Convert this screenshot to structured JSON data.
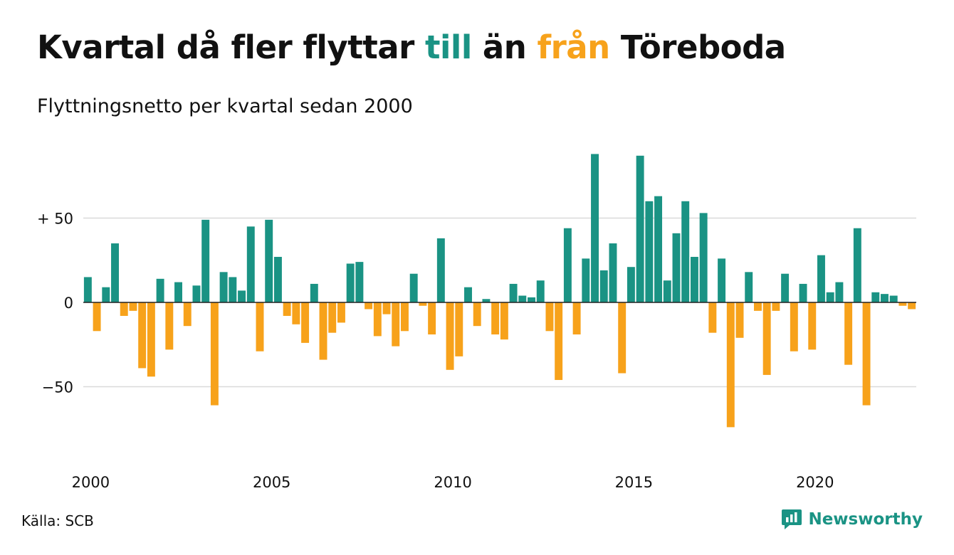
{
  "title": {
    "part1": "Kvartal då fler flyttar ",
    "till": "till",
    "part2": " än ",
    "fran": "från",
    "part3": " Töreboda"
  },
  "subtitle": "Flyttningsnetto per kvartal sedan 2000",
  "source": "Källa: SCB",
  "brand": {
    "name": "Newsworthy",
    "logo_icon": "newsworthy-logo-icon"
  },
  "colors": {
    "positive": "#1a9384",
    "negative": "#f7a21b",
    "grid": "#d9d9d9",
    "zero": "#222222",
    "text": "#111111",
    "brand": "#1a9384"
  },
  "chart_data": {
    "type": "bar",
    "x_start": "2000 Q1",
    "periodicity": "quarterly",
    "values": [
      15,
      -17,
      9,
      35,
      -8,
      -5,
      -39,
      -44,
      14,
      -28,
      12,
      -14,
      10,
      49,
      -61,
      18,
      15,
      7,
      45,
      -29,
      49,
      27,
      -8,
      -13,
      -24,
      11,
      -34,
      -18,
      -12,
      23,
      24,
      -4,
      -20,
      -7,
      -26,
      -17,
      17,
      -2,
      -19,
      38,
      -40,
      -32,
      9,
      -14,
      2,
      -19,
      -22,
      11,
      4,
      3,
      13,
      -17,
      -46,
      44,
      -19,
      26,
      88,
      19,
      35,
      -42,
      21,
      87,
      60,
      63,
      13,
      41,
      60,
      27,
      53,
      -18,
      26,
      -74,
      -21,
      18,
      -5,
      -43,
      -5,
      17,
      -29,
      11,
      -28,
      28,
      6,
      12,
      -37,
      44,
      -61,
      6,
      5,
      4,
      -2,
      -4
    ],
    "x_tick_labels": [
      "2000",
      "2005",
      "2010",
      "2015",
      "2020"
    ],
    "y_ticks": [
      50,
      0,
      -50
    ],
    "y_tick_labels": [
      "+ 50",
      "0",
      "−50"
    ],
    "ylim": [
      -92,
      92
    ],
    "grid": true,
    "xlabel": "",
    "ylabel": ""
  }
}
